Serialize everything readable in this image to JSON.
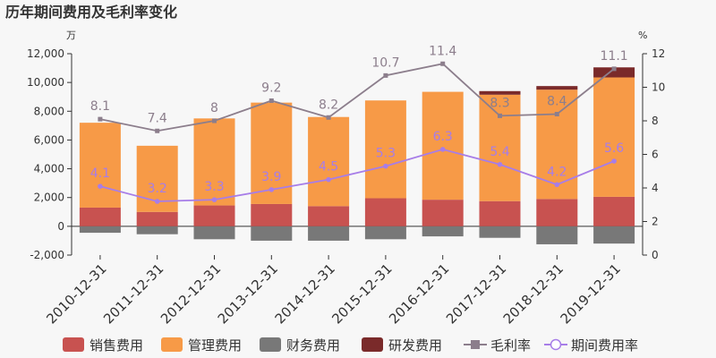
{
  "chart_data": {
    "type": "bar",
    "title": "历年期间费用及毛利率变化",
    "left_unit": "万",
    "right_unit": "%",
    "categories": [
      "2010-12-31",
      "2011-12-31",
      "2012-12-31",
      "2013-12-31",
      "2014-12-31",
      "2015-12-31",
      "2016-12-31",
      "2017-12-31",
      "2018-12-31",
      "2019-12-31"
    ],
    "left_axis": {
      "ylim": [
        -2000,
        12000
      ],
      "ticks": [
        "-2,000",
        "0",
        "2,000",
        "4,000",
        "6,000",
        "8,000",
        "10,000",
        "12,000"
      ]
    },
    "right_axis": {
      "ylim": [
        0,
        12
      ],
      "ticks": [
        "0",
        "2",
        "4",
        "6",
        "8",
        "10",
        "12"
      ]
    },
    "bar_series": [
      {
        "name": "销售费用",
        "color": "#c85250",
        "values": [
          1300,
          1000,
          1450,
          1550,
          1400,
          1950,
          1850,
          1750,
          1900,
          2050
        ]
      },
      {
        "name": "管理费用",
        "color": "#f79a47",
        "values": [
          5900,
          4600,
          6050,
          7050,
          6200,
          6800,
          7500,
          7400,
          7600,
          8300
        ]
      },
      {
        "name": "财务费用",
        "color": "#787878",
        "values": [
          -450,
          -550,
          -900,
          -1000,
          -1000,
          -900,
          -700,
          -800,
          -1250,
          -1200
        ]
      },
      {
        "name": "研发费用",
        "color": "#7a2a2a",
        "values": [
          0,
          0,
          0,
          0,
          0,
          0,
          0,
          250,
          250,
          700
        ]
      }
    ],
    "line_series": [
      {
        "name": "毛利率",
        "color": "#8c7e8c",
        "marker": "square",
        "values": [
          8.1,
          7.4,
          8.0,
          9.2,
          8.2,
          10.7,
          11.4,
          8.3,
          8.4,
          11.1
        ],
        "labels": [
          "8.1",
          "7.4",
          "8",
          "9.2",
          "8.2",
          "10.7",
          "11.4",
          "8.3",
          "8.4",
          "11.1"
        ]
      },
      {
        "name": "期间费用率",
        "color": "#a77de8",
        "marker": "circle",
        "values": [
          4.1,
          3.2,
          3.3,
          3.9,
          4.5,
          5.3,
          6.3,
          5.4,
          4.2,
          5.6
        ],
        "labels": [
          "4.1",
          "3.2",
          "3.3",
          "3.9",
          "4.5",
          "5.3",
          "6.3",
          "5.4",
          "4.2",
          "5.6"
        ]
      }
    ],
    "legend_position": "bottom",
    "grid": false
  }
}
